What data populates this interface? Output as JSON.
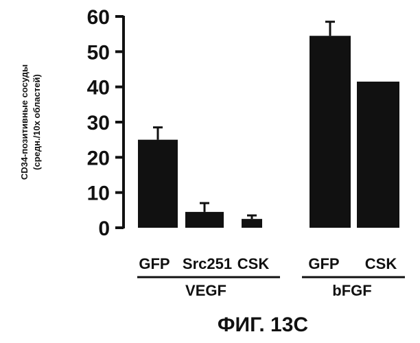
{
  "chart_data": {
    "type": "bar",
    "categories": [
      "GFP",
      "Src251",
      "CSK",
      "GFP",
      "CSK"
    ],
    "values": [
      25,
      4.5,
      2.5,
      54.5,
      41.5
    ],
    "error_bars": [
      3.5,
      2.5,
      1,
      4,
      null
    ],
    "groups": [
      {
        "label": "VEGF",
        "categories": [
          0,
          1,
          2
        ]
      },
      {
        "label": "bFGF",
        "categories": [
          3,
          4
        ]
      }
    ],
    "ylabel_lines": [
      "CD34-позитивные сосуды",
      "(средн./10х областей)"
    ],
    "ylim": [
      0,
      60
    ],
    "yticks": [
      0,
      10,
      20,
      30,
      40,
      50,
      60
    ],
    "grid": false,
    "bar_color": "#111111"
  },
  "figure_caption": "ФИГ. 13С"
}
